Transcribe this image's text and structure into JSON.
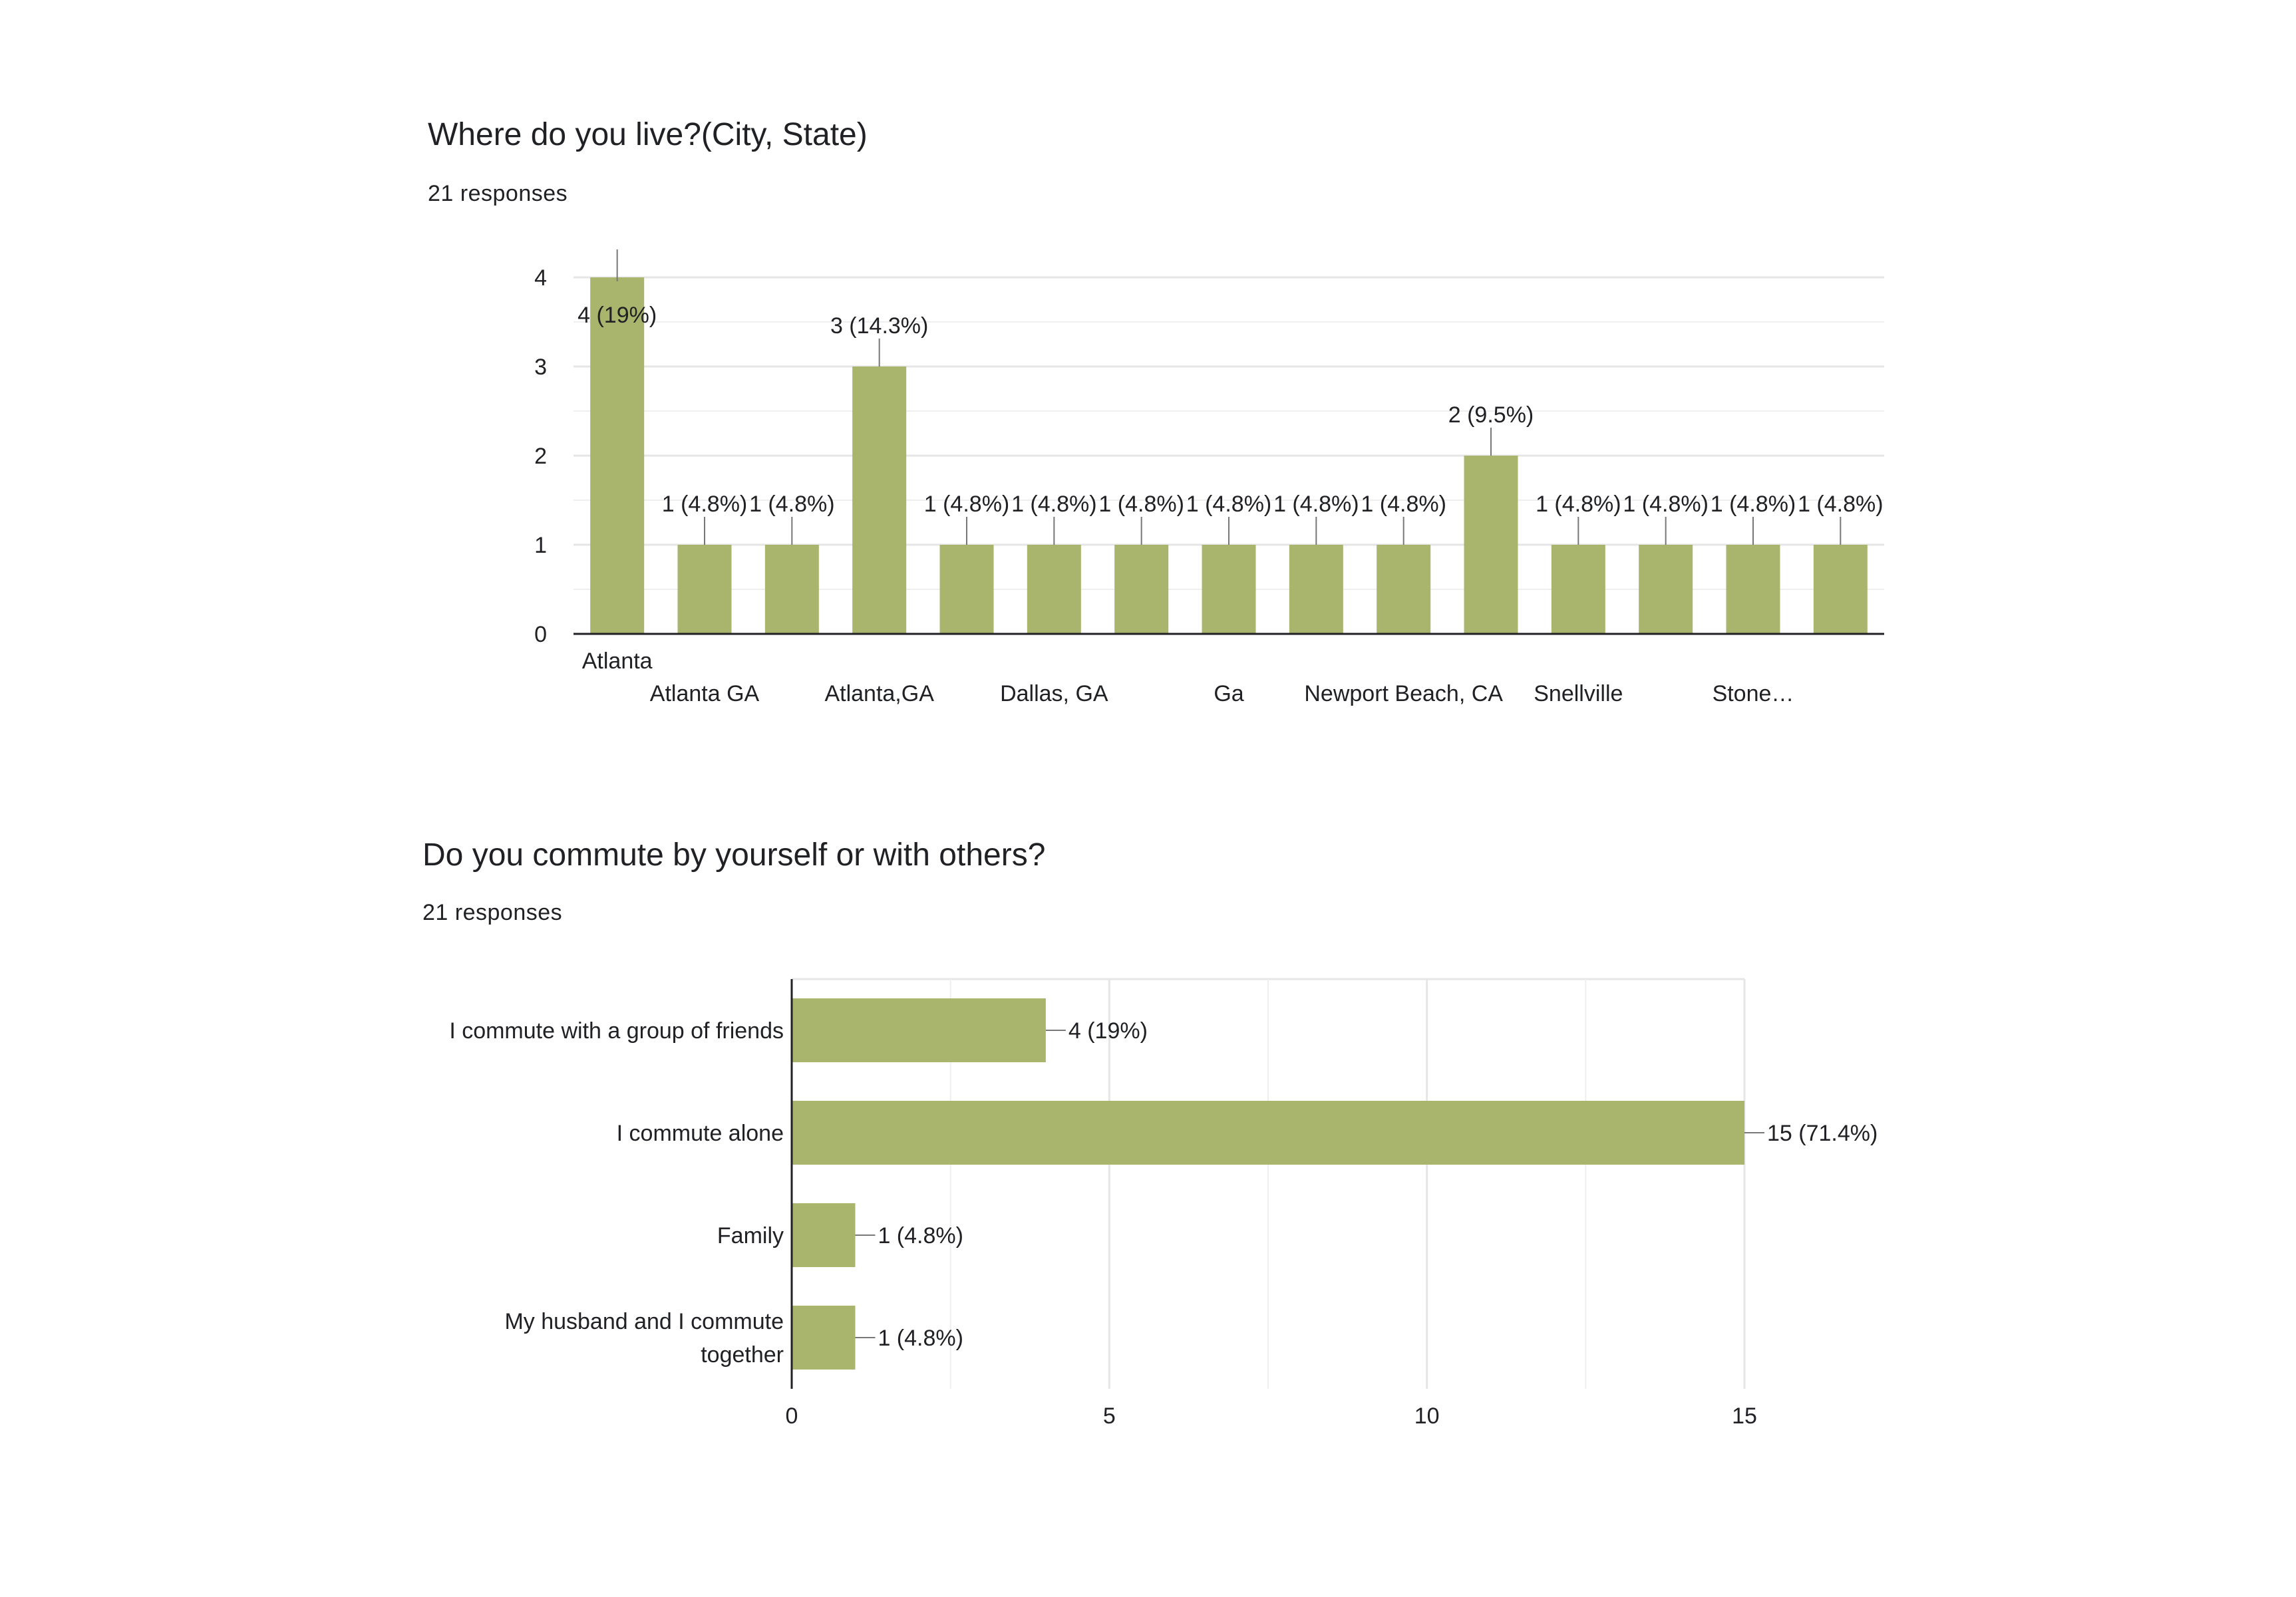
{
  "questions": [
    {
      "title": "Where do you live?(City, State)",
      "responses": "21 responses"
    },
    {
      "title": "Do you commute by yourself or with others?",
      "responses": "21 responses"
    }
  ],
  "colors": {
    "bar": "#a9b56d",
    "grid": "#e6e6e6",
    "axis": "#202124",
    "leader": "#777777"
  },
  "chart_data": [
    {
      "type": "bar",
      "orientation": "vertical",
      "title": "Where do you live?(City, State)",
      "categories": [
        "Atlanta",
        "Atlanta GA",
        "",
        "Atlanta,GA",
        "",
        "Dallas, GA",
        "",
        "Ga",
        "",
        "Newport Beach, CA",
        "",
        "Snellville",
        "",
        "Stone…",
        ""
      ],
      "values": [
        4,
        1,
        1,
        3,
        1,
        1,
        1,
        1,
        1,
        1,
        2,
        1,
        1,
        1,
        1
      ],
      "data_labels": [
        "4 (19%)",
        "1 (4.8%)",
        "1 (4.8%)",
        "3 (14.3%)",
        "1 (4.8%)",
        "1 (4.8%)",
        "1 (4.8%)",
        "1 (4.8%)",
        "1 (4.8%)",
        "1 (4.8%)",
        "2 (9.5%)",
        "1 (4.8%)",
        "1 (4.8%)",
        "1 (4.8%)",
        "1 (4.8%)"
      ],
      "ylim": [
        0,
        4
      ],
      "yticks": [
        0,
        1,
        2,
        3,
        4
      ],
      "grid": true,
      "legend": "none"
    },
    {
      "type": "bar",
      "orientation": "horizontal",
      "title": "Do you commute by yourself or with others?",
      "categories": [
        "I commute with a group of friends",
        "I commute alone",
        "Family",
        "My husband and I commute together"
      ],
      "category_lines": [
        [
          "I commute with a group of friends"
        ],
        [
          "I commute alone"
        ],
        [
          "Family"
        ],
        [
          "My husband and I commute",
          "together"
        ]
      ],
      "values": [
        4,
        15,
        1,
        1
      ],
      "data_labels": [
        "4 (19%)",
        "15 (71.4%)",
        "1 (4.8%)",
        "1 (4.8%)"
      ],
      "xlim": [
        0,
        15
      ],
      "xticks": [
        0,
        5,
        10,
        15
      ],
      "grid": true,
      "legend": "none"
    }
  ]
}
